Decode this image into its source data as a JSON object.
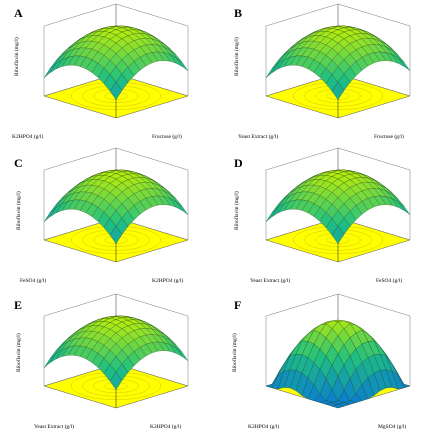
{
  "figure": {
    "panels": [
      {
        "letter": "A",
        "zlabel": "Riboflavin (mg/l)",
        "xlabel": "K2HPO4 (g/l)",
        "ylabel": "Fructose (g/l)"
      },
      {
        "letter": "B",
        "zlabel": "Riboflavin (mg/l)",
        "xlabel": "Yeast Extract (g/l)",
        "ylabel": "Fructose (g/l)"
      },
      {
        "letter": "C",
        "zlabel": "Riboflavin (mg/l)",
        "xlabel": "FeSO4 (g/l)",
        "ylabel": "K2HPO4 (g/l)"
      },
      {
        "letter": "D",
        "zlabel": "Riboflavin (mg/l)",
        "xlabel": "Yeast Extract (g/l)",
        "ylabel": "FeSO4 (g/l)"
      },
      {
        "letter": "E",
        "zlabel": "Riboflavin (mg/l)",
        "xlabel": "Yeast Extract (g/l)",
        "ylabel": "K2HPO4 (g/l)"
      },
      {
        "letter": "F",
        "zlabel": "Riboflavin (mg/l)",
        "xlabel": "K2HPO4 (g/l)",
        "ylabel": "MgSO4 (g/l)"
      }
    ]
  },
  "chart_data": [
    {
      "type": "surface",
      "title": "A",
      "zlabel": "Riboflavin (mg/l)",
      "xlabel": "K2HPO4 (g/l)",
      "ylabel": "Fructose (g/l)",
      "surface_colors": [
        "#0a7fd0",
        "#20c080",
        "#c6f000"
      ],
      "contour_plane_color": "#ffff00",
      "shape": "dome"
    },
    {
      "type": "surface",
      "title": "B",
      "zlabel": "Riboflavin (mg/l)",
      "xlabel": "Yeast Extract (g/l)",
      "ylabel": "Fructose (g/l)",
      "surface_colors": [
        "#0a7fd0",
        "#20c080",
        "#c6f000"
      ],
      "contour_plane_color": "#ffff00",
      "shape": "dome"
    },
    {
      "type": "surface",
      "title": "C",
      "zlabel": "Riboflavin (mg/l)",
      "xlabel": "FeSO4 (g/l)",
      "ylabel": "K2HPO4 (g/l)",
      "surface_colors": [
        "#0a7fd0",
        "#20c080",
        "#c6f000"
      ],
      "contour_plane_color": "#ffff00",
      "shape": "dome"
    },
    {
      "type": "surface",
      "title": "D",
      "zlabel": "Riboflavin (mg/l)",
      "xlabel": "Yeast Extract (g/l)",
      "ylabel": "FeSO4 (g/l)",
      "surface_colors": [
        "#0a7fd0",
        "#20c080",
        "#c6f000"
      ],
      "contour_plane_color": "#ffff00",
      "shape": "dome"
    },
    {
      "type": "surface",
      "title": "E",
      "zlabel": "Riboflavin (mg/l)",
      "xlabel": "Yeast Extract (g/l)",
      "ylabel": "K2HPO4 (g/l)",
      "surface_colors": [
        "#0a7fd0",
        "#20c080",
        "#c6f000"
      ],
      "contour_plane_color": "#ffff00",
      "shape": "dome"
    },
    {
      "type": "surface",
      "title": "F",
      "zlabel": "Riboflavin (mg/l)",
      "xlabel": "K2HPO4 (g/l)",
      "ylabel": "MgSO4 (g/l)",
      "surface_colors": [
        "#0a7fd0",
        "#20c080",
        "#c6f000"
      ],
      "contour_plane_color": "#ffff00",
      "shape": "saddle-dome"
    }
  ]
}
